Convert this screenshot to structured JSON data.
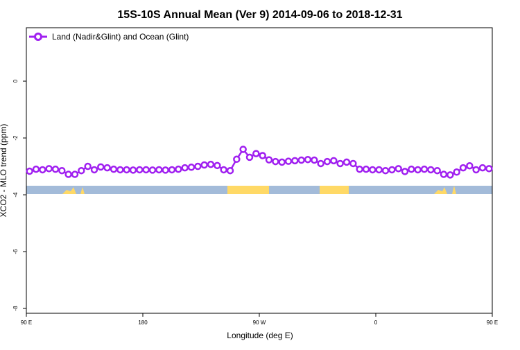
{
  "chart_data": {
    "type": "line",
    "title": "15S-10S Annual Mean (Ver 9)   2014-09-06 to 2018-12-31",
    "x_label": "Longitude (deg E)",
    "y_label": "XCO2 - MLO trend (ppm)",
    "xlim": [
      90,
      450
    ],
    "ylim": [
      -8.17,
      1.88
    ],
    "xticks": [
      {
        "value": 90,
        "label": "90 E"
      },
      {
        "value": 180,
        "label": "180"
      },
      {
        "value": 270,
        "label": "90 W"
      },
      {
        "value": 360,
        "label": "0"
      },
      {
        "value": 450,
        "label": "90 E"
      }
    ],
    "yticks": [
      0,
      -2,
      -4,
      -6,
      -8
    ],
    "legend": "top-left",
    "x": [
      92.5,
      97.5,
      102.5,
      107.5,
      112.5,
      117.5,
      122.5,
      127.5,
      132.5,
      137.5,
      142.5,
      147.5,
      152.5,
      157.5,
      162.5,
      167.5,
      172.5,
      177.5,
      182.5,
      187.5,
      192.5,
      197.5,
      202.5,
      207.5,
      212.5,
      217.5,
      222.5,
      227.5,
      232.5,
      237.5,
      242.5,
      247.5,
      252.5,
      257.5,
      262.5,
      267.5,
      272.5,
      277.5,
      282.5,
      287.5,
      292.5,
      297.5,
      302.5,
      307.5,
      312.5,
      317.5,
      322.5,
      327.5,
      332.5,
      337.5,
      342.5,
      347.5,
      352.5,
      357.5,
      362.5,
      367.5,
      372.5,
      377.5,
      382.5,
      387.5,
      392.5,
      397.5,
      402.5,
      407.5,
      412.5,
      417.5,
      422.5,
      427.5,
      432.5,
      437.5,
      442.5,
      447.5
    ],
    "series": [
      {
        "name": "Land (Nadir&Glint) and Ocean (Glint)",
        "color": "#a020f0",
        "values": [
          -3.17,
          -3.1,
          -3.12,
          -3.08,
          -3.1,
          -3.15,
          -3.28,
          -3.28,
          -3.15,
          -3.0,
          -3.12,
          -3.02,
          -3.05,
          -3.1,
          -3.12,
          -3.12,
          -3.13,
          -3.12,
          -3.12,
          -3.13,
          -3.12,
          -3.13,
          -3.12,
          -3.1,
          -3.05,
          -3.03,
          -3.0,
          -2.95,
          -2.93,
          -2.97,
          -3.12,
          -3.15,
          -2.75,
          -2.4,
          -2.68,
          -2.55,
          -2.62,
          -2.77,
          -2.83,
          -2.85,
          -2.82,
          -2.8,
          -2.78,
          -2.76,
          -2.78,
          -2.9,
          -2.83,
          -2.8,
          -2.9,
          -2.85,
          -2.9,
          -3.1,
          -3.1,
          -3.12,
          -3.12,
          -3.15,
          -3.12,
          -3.08,
          -3.18,
          -3.1,
          -3.12,
          -3.1,
          -3.12,
          -3.15,
          -3.28,
          -3.3,
          -3.2,
          -3.05,
          -2.98,
          -3.12,
          -3.05,
          -3.08
        ]
      }
    ]
  }
}
